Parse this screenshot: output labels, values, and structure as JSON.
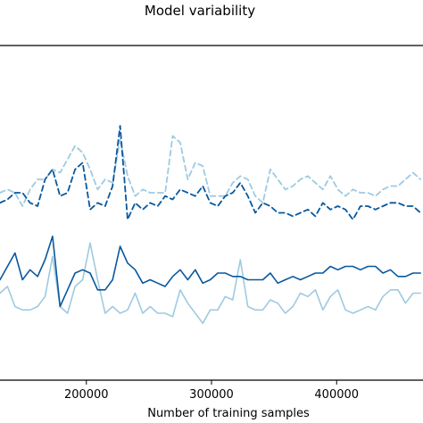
{
  "chart_data": {
    "type": "line",
    "title": "Model variability",
    "xlabel": "Number of training samples",
    "ylabel": "",
    "xlim": [
      131000,
      469000
    ],
    "ylim": [
      0,
      1
    ],
    "x_ticks": [
      200000,
      300000,
      400000
    ],
    "x_tick_labels": [
      "200000",
      "300000",
      "400000"
    ],
    "grid": false,
    "legend": "none",
    "series": [
      {
        "style": "dashed",
        "color": "#9ecae1",
        "x": [
          131000,
          137000,
          143000,
          149000,
          155000,
          161000,
          167000,
          173000,
          179000,
          185000,
          191000,
          197000,
          203000,
          209000,
          215000,
          221000,
          227000,
          233000,
          239000,
          245000,
          251000,
          257000,
          263000,
          269000,
          275000,
          281000,
          287000,
          293000,
          299000,
          305000,
          311000,
          317000,
          323000,
          329000,
          335000,
          341000,
          347000,
          353000,
          359000,
          365000,
          371000,
          377000,
          383000,
          389000,
          395000,
          401000,
          407000,
          413000,
          419000,
          425000,
          431000,
          437000,
          443000,
          449000,
          455000,
          461000,
          467000
        ],
        "y": [
          0.56,
          0.57,
          0.56,
          0.52,
          0.57,
          0.6,
          0.6,
          0.63,
          0.62,
          0.66,
          0.7,
          0.68,
          0.63,
          0.57,
          0.6,
          0.59,
          0.72,
          0.61,
          0.55,
          0.57,
          0.56,
          0.56,
          0.56,
          0.73,
          0.71,
          0.6,
          0.65,
          0.64,
          0.55,
          0.55,
          0.55,
          0.59,
          0.61,
          0.6,
          0.55,
          0.53,
          0.63,
          0.6,
          0.57,
          0.58,
          0.6,
          0.61,
          0.59,
          0.57,
          0.61,
          0.57,
          0.55,
          0.57,
          0.56,
          0.56,
          0.55,
          0.57,
          0.58,
          0.58,
          0.6,
          0.62,
          0.6
        ]
      },
      {
        "style": "dashed",
        "color": "#08589e",
        "x": [
          131000,
          137000,
          143000,
          149000,
          155000,
          161000,
          167000,
          173000,
          179000,
          185000,
          191000,
          197000,
          203000,
          209000,
          215000,
          221000,
          227000,
          233000,
          239000,
          245000,
          251000,
          257000,
          263000,
          269000,
          275000,
          281000,
          287000,
          293000,
          299000,
          305000,
          311000,
          317000,
          323000,
          329000,
          335000,
          341000,
          347000,
          353000,
          359000,
          365000,
          371000,
          377000,
          383000,
          389000,
          395000,
          401000,
          407000,
          413000,
          419000,
          425000,
          431000,
          437000,
          443000,
          449000,
          455000,
          461000,
          467000
        ],
        "y": [
          0.53,
          0.54,
          0.56,
          0.56,
          0.53,
          0.52,
          0.6,
          0.63,
          0.55,
          0.56,
          0.63,
          0.65,
          0.51,
          0.53,
          0.52,
          0.58,
          0.76,
          0.48,
          0.53,
          0.51,
          0.53,
          0.52,
          0.55,
          0.54,
          0.57,
          0.56,
          0.55,
          0.58,
          0.53,
          0.52,
          0.55,
          0.56,
          0.59,
          0.55,
          0.5,
          0.53,
          0.52,
          0.5,
          0.5,
          0.49,
          0.5,
          0.51,
          0.49,
          0.53,
          0.51,
          0.52,
          0.51,
          0.48,
          0.52,
          0.52,
          0.51,
          0.52,
          0.53,
          0.53,
          0.52,
          0.52,
          0.5
        ]
      },
      {
        "style": "solid",
        "color": "#9ecae1",
        "x": [
          131000,
          137000,
          143000,
          149000,
          155000,
          161000,
          167000,
          173000,
          179000,
          185000,
          191000,
          197000,
          203000,
          209000,
          215000,
          221000,
          227000,
          233000,
          239000,
          245000,
          251000,
          257000,
          263000,
          269000,
          275000,
          281000,
          287000,
          293000,
          299000,
          305000,
          311000,
          317000,
          323000,
          329000,
          335000,
          341000,
          347000,
          353000,
          359000,
          365000,
          371000,
          377000,
          383000,
          389000,
          395000,
          401000,
          407000,
          413000,
          419000,
          425000,
          431000,
          437000,
          443000,
          449000,
          455000,
          461000,
          467000
        ],
        "y": [
          0.26,
          0.28,
          0.22,
          0.21,
          0.21,
          0.22,
          0.25,
          0.37,
          0.22,
          0.2,
          0.28,
          0.3,
          0.41,
          0.3,
          0.2,
          0.22,
          0.2,
          0.21,
          0.26,
          0.2,
          0.22,
          0.2,
          0.2,
          0.19,
          0.27,
          0.23,
          0.2,
          0.17,
          0.21,
          0.21,
          0.25,
          0.24,
          0.36,
          0.22,
          0.21,
          0.21,
          0.24,
          0.23,
          0.2,
          0.22,
          0.26,
          0.25,
          0.27,
          0.21,
          0.25,
          0.27,
          0.21,
          0.2,
          0.21,
          0.22,
          0.21,
          0.25,
          0.27,
          0.27,
          0.23,
          0.26,
          0.26
        ]
      },
      {
        "style": "solid",
        "color": "#08589e",
        "x": [
          131000,
          137000,
          143000,
          149000,
          155000,
          161000,
          167000,
          173000,
          179000,
          185000,
          191000,
          197000,
          203000,
          209000,
          215000,
          221000,
          227000,
          233000,
          239000,
          245000,
          251000,
          257000,
          263000,
          269000,
          275000,
          281000,
          287000,
          293000,
          299000,
          305000,
          311000,
          317000,
          323000,
          329000,
          335000,
          341000,
          347000,
          353000,
          359000,
          365000,
          371000,
          377000,
          383000,
          389000,
          395000,
          401000,
          407000,
          413000,
          419000,
          425000,
          431000,
          437000,
          443000,
          449000,
          455000,
          461000,
          467000
        ],
        "y": [
          0.3,
          0.34,
          0.38,
          0.3,
          0.33,
          0.31,
          0.36,
          0.43,
          0.22,
          0.27,
          0.32,
          0.33,
          0.32,
          0.27,
          0.27,
          0.3,
          0.4,
          0.35,
          0.33,
          0.29,
          0.3,
          0.29,
          0.28,
          0.31,
          0.33,
          0.3,
          0.33,
          0.29,
          0.3,
          0.32,
          0.32,
          0.31,
          0.31,
          0.3,
          0.3,
          0.3,
          0.32,
          0.29,
          0.3,
          0.31,
          0.3,
          0.31,
          0.32,
          0.32,
          0.34,
          0.33,
          0.34,
          0.34,
          0.33,
          0.34,
          0.34,
          0.32,
          0.33,
          0.31,
          0.31,
          0.32,
          0.32
        ]
      }
    ]
  }
}
